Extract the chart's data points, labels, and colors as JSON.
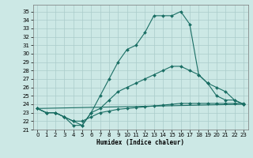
{
  "xlabel": "Humidex (Indice chaleur)",
  "background_color": "#cce8e5",
  "grid_color": "#aaccca",
  "line_color": "#1a6e64",
  "xlim": [
    -0.5,
    23.5
  ],
  "ylim": [
    21,
    35.8
  ],
  "ytick_vals": [
    21,
    22,
    23,
    24,
    25,
    26,
    27,
    28,
    29,
    30,
    31,
    32,
    33,
    34,
    35
  ],
  "xtick_vals": [
    0,
    1,
    2,
    3,
    4,
    5,
    6,
    7,
    8,
    9,
    10,
    11,
    12,
    13,
    14,
    15,
    16,
    17,
    18,
    19,
    20,
    21,
    22,
    23
  ],
  "series": [
    {
      "x": [
        0,
        1,
        2,
        3,
        4,
        5,
        6,
        7,
        8,
        9,
        10,
        11,
        12,
        13,
        14,
        15,
        16,
        17,
        18,
        19,
        20,
        21,
        22,
        23
      ],
      "y": [
        23.5,
        23.0,
        23.0,
        22.5,
        21.5,
        21.5,
        23.0,
        25.0,
        27.0,
        29.0,
        30.5,
        31.0,
        32.5,
        34.5,
        34.5,
        34.5,
        35.0,
        33.5,
        27.5,
        26.5,
        25.0,
        24.5,
        24.5,
        24.0
      ],
      "marker": true
    },
    {
      "x": [
        0,
        1,
        2,
        3,
        4,
        5,
        6,
        7,
        8,
        9,
        10,
        11,
        12,
        13,
        14,
        15,
        16,
        17,
        18,
        19,
        20,
        21,
        22,
        23
      ],
      "y": [
        23.5,
        23.0,
        23.0,
        22.5,
        22.0,
        21.5,
        23.0,
        23.5,
        24.5,
        25.5,
        26.0,
        26.5,
        27.0,
        27.5,
        28.0,
        28.5,
        28.5,
        28.0,
        27.5,
        26.5,
        26.0,
        25.5,
        24.5,
        24.0
      ],
      "marker": true
    },
    {
      "x": [
        0,
        1,
        2,
        3,
        4,
        5,
        6,
        7,
        8,
        9,
        10,
        11,
        12,
        13,
        14,
        15,
        16,
        17,
        18,
        19,
        20,
        21,
        22,
        23
      ],
      "y": [
        23.5,
        23.0,
        23.0,
        22.5,
        22.0,
        22.0,
        22.5,
        23.0,
        23.2,
        23.4,
        23.5,
        23.6,
        23.7,
        23.8,
        23.9,
        24.0,
        24.1,
        24.1,
        24.1,
        24.1,
        24.1,
        24.1,
        24.1,
        24.1
      ],
      "marker": true
    },
    {
      "x": [
        0,
        23
      ],
      "y": [
        23.5,
        24.0
      ],
      "marker": false
    }
  ]
}
